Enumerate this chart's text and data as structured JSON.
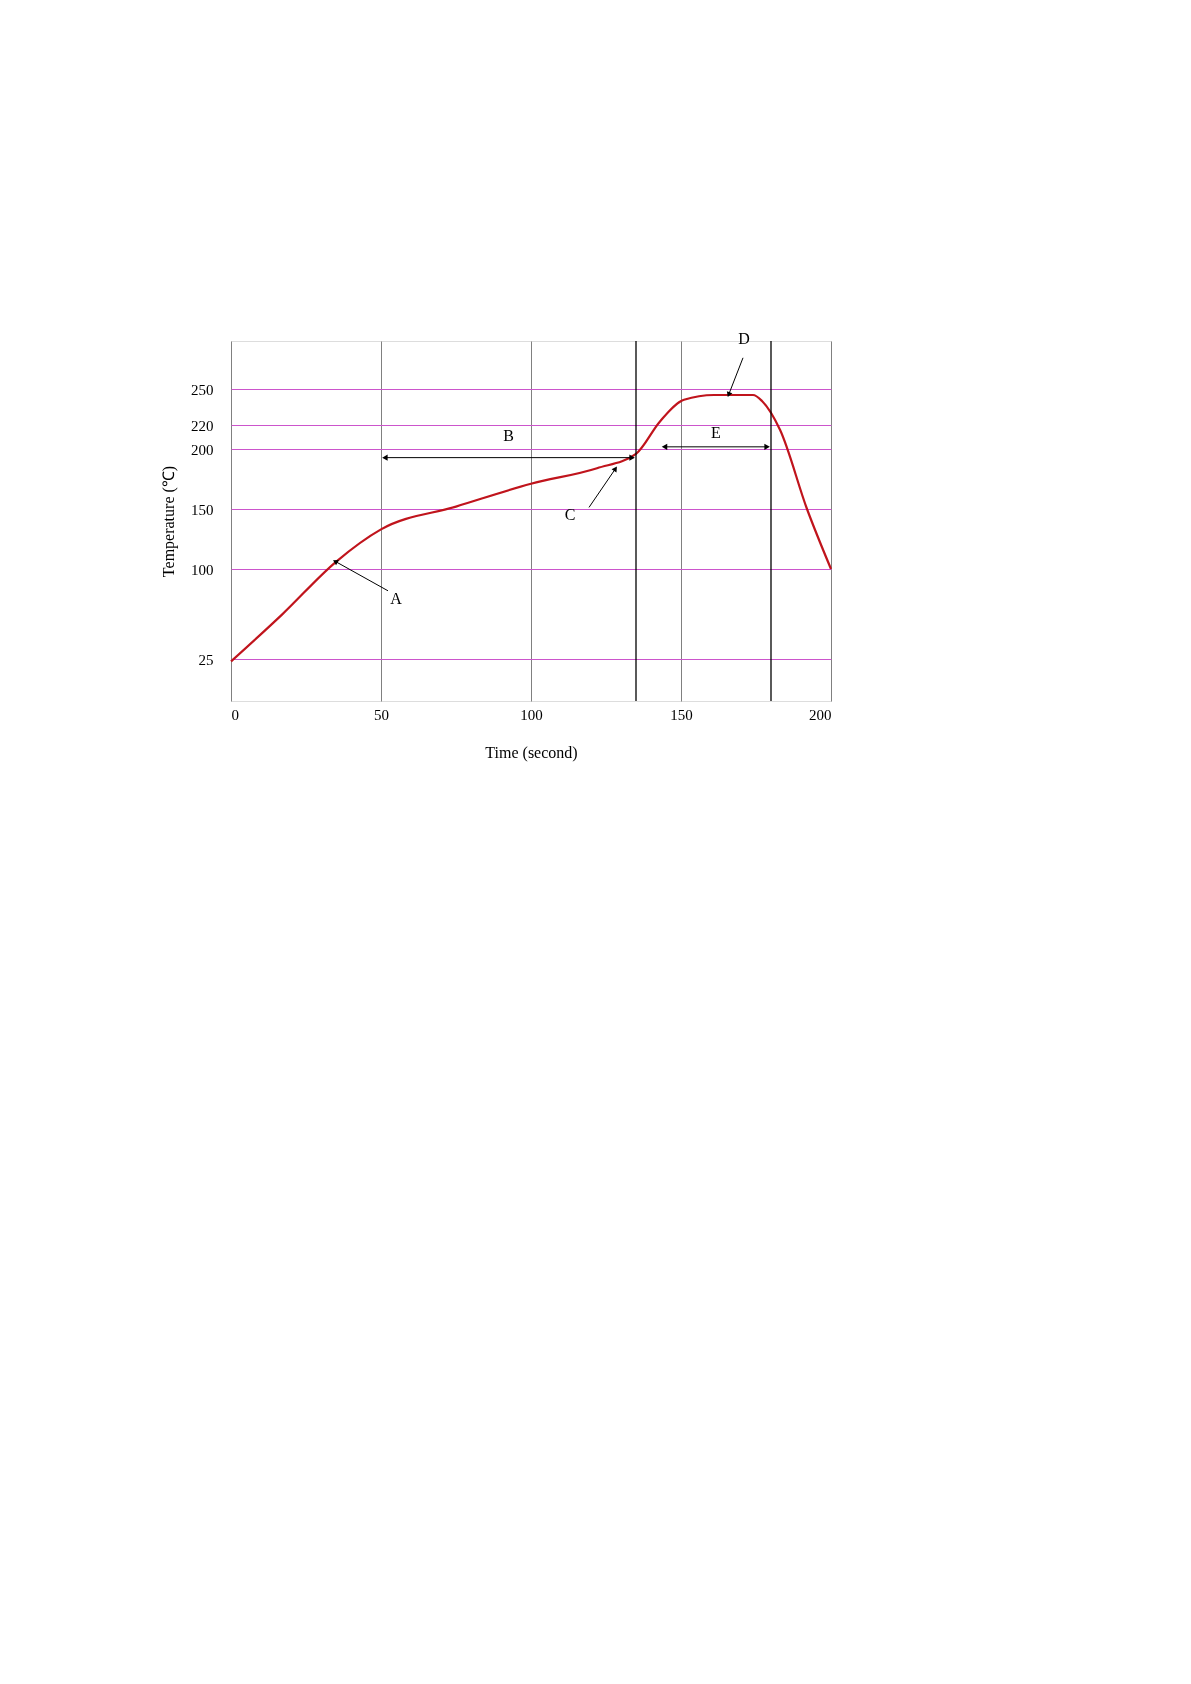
{
  "chart_data": {
    "type": "line",
    "xlabel": "Time (second)",
    "ylabel": "Temperature (℃)",
    "x": [
      0,
      17,
      35,
      50,
      75,
      100,
      122,
      135,
      143,
      151,
      161,
      174,
      177,
      183,
      192,
      200
    ],
    "series": [
      {
        "color": "#c0141c",
        "values": [
          23,
          62,
          106,
          133,
          152,
          171,
          184,
          196,
          223,
          241,
          245,
          245,
          240,
          216,
          150,
          100
        ]
      }
    ],
    "xlim": [
      0,
      200
    ],
    "xticks": [
      0,
      50,
      100,
      150,
      200
    ],
    "ylim": [
      -10,
      290
    ],
    "yticks": [
      25,
      100,
      150,
      200,
      220,
      250
    ],
    "grid": true,
    "marker": "none",
    "line_style": "solid",
    "ref_lines": [
      {
        "axis": "x",
        "value": 135,
        "color": "#000000"
      },
      {
        "axis": "x",
        "value": 180,
        "color": "#000000"
      }
    ],
    "annotations": [
      "B",
      "E",
      {
        "text": "A",
        "x": 35,
        "y": 106
      },
      {
        "text": "C",
        "x": 128,
        "y": 183
      },
      {
        "text": "D",
        "x": 166,
        "y": 246
      }
    ]
  }
}
